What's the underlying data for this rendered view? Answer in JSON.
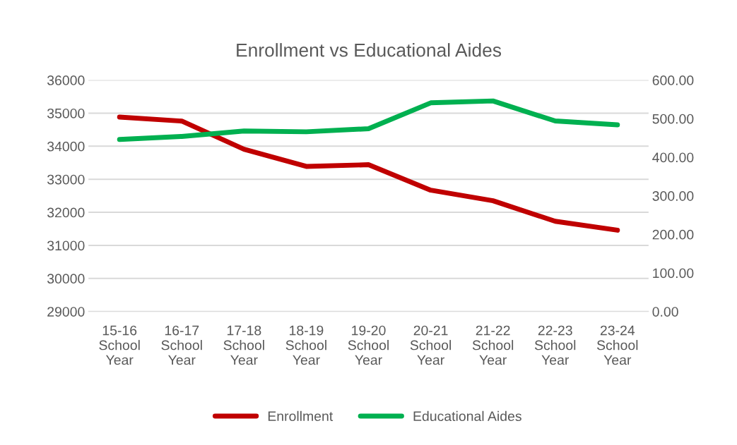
{
  "chart_data": {
    "type": "line",
    "title": "Enrollment vs Educational Aides",
    "categories": [
      "15-16\nSchool\nYear",
      "16-17\nSchool\nYear",
      "17-18\nSchool\nYear",
      "18-19\nSchool\nYear",
      "19-20\nSchool\nYear",
      "20-21\nSchool\nYear",
      "21-22\nSchool\nYear",
      "22-23\nSchool\nYear",
      "23-24\nSchool\nYear"
    ],
    "series": [
      {
        "name": "Enrollment",
        "color": "#c00000",
        "values": [
          34880,
          34760,
          33910,
          33390,
          33440,
          32670,
          32350,
          31730,
          31460
        ]
      },
      {
        "name": "Educational Aides",
        "color": "#00b050",
        "axis": "y2",
        "values": [
          446,
          454,
          468,
          466,
          474,
          541,
          546,
          494,
          484
        ]
      }
    ],
    "ylim": [
      29000,
      36000
    ],
    "yticks": [
      29000,
      30000,
      31000,
      32000,
      33000,
      34000,
      35000,
      36000
    ],
    "y2lim": [
      0,
      600
    ],
    "y2ticks": [
      {
        "value": 0,
        "label": "0.00"
      },
      {
        "value": 100,
        "label": "100.00"
      },
      {
        "value": 200,
        "label": "200.00"
      },
      {
        "value": 300,
        "label": "300.00"
      },
      {
        "value": 400,
        "label": "400.00"
      },
      {
        "value": 500,
        "label": "500.00"
      },
      {
        "value": 600,
        "label": "600.00"
      }
    ],
    "grid": "y",
    "legend": "bottom"
  }
}
